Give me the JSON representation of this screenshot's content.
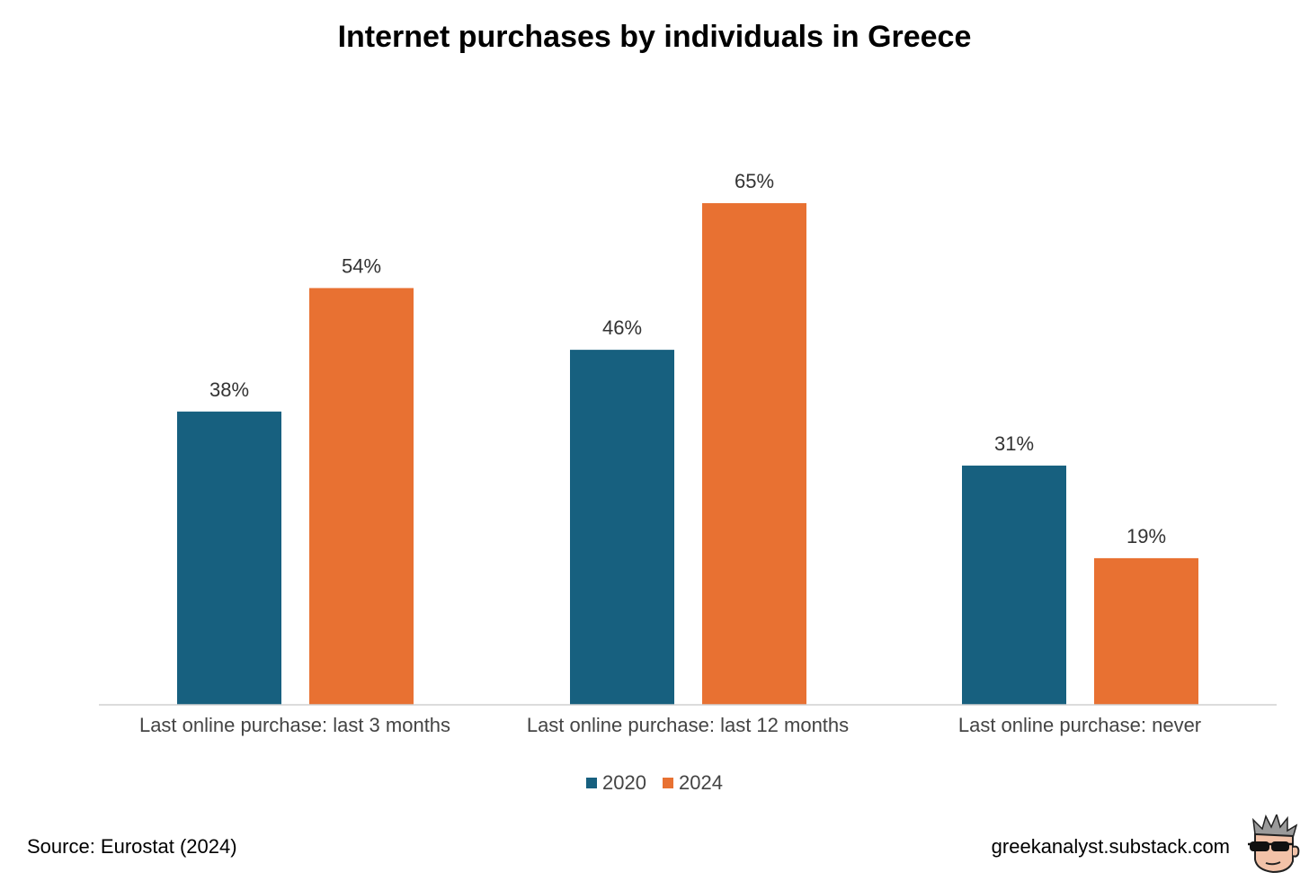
{
  "chart_data": {
    "type": "bar",
    "title": "Internet purchases by individuals in Greece",
    "categories": [
      "Last online purchase: last 3 months",
      "Last online purchase: last 12 months",
      "Last online purchase: never"
    ],
    "series": [
      {
        "name": "2020",
        "values": [
          38,
          46,
          31
        ],
        "labels": [
          "38%",
          "46%",
          "31%"
        ],
        "color": "#17607f"
      },
      {
        "name": "2024",
        "values": [
          54,
          65,
          19
        ],
        "labels": [
          "54%",
          "65%",
          "19%"
        ],
        "color": "#e87132"
      }
    ],
    "ylim": [
      0,
      70
    ],
    "grid": false,
    "legend_position": "bottom"
  },
  "footer": {
    "source": "Source: Eurostat (2024)",
    "site": "greekanalyst.substack.com",
    "logo_icon": "cartoon-face-sunglasses-icon"
  }
}
